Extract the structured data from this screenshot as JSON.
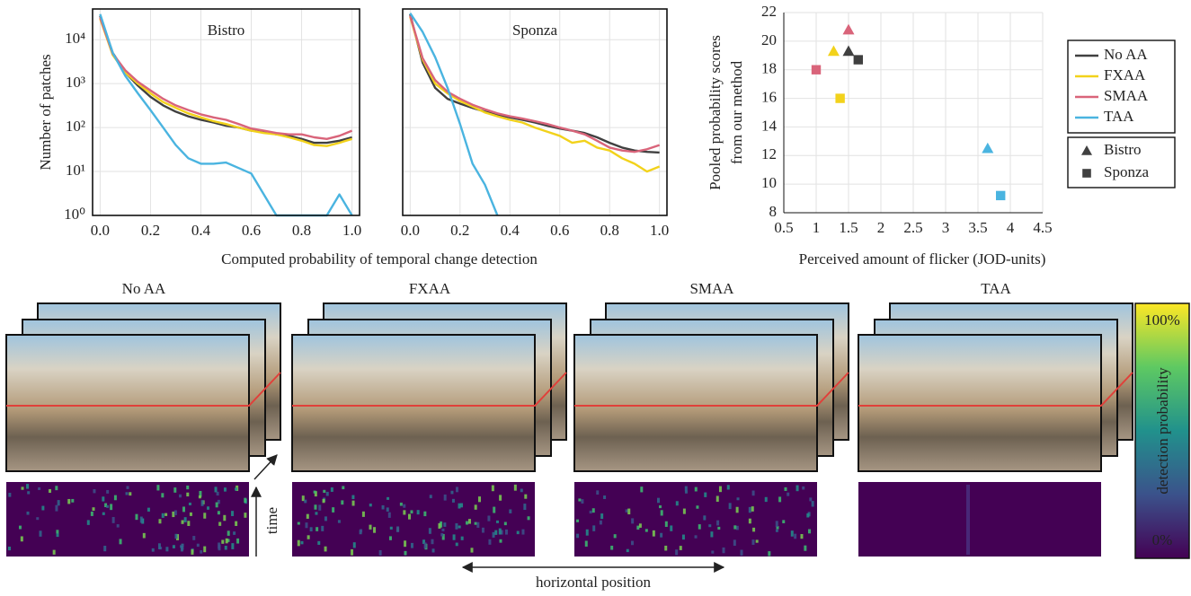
{
  "chart_data": [
    {
      "type": "line",
      "title": "Bistro",
      "ylabel": "Number of patches",
      "xlabel": "Computed probability of temporal change detection",
      "x": [
        0,
        0.05,
        0.1,
        0.15,
        0.2,
        0.25,
        0.3,
        0.35,
        0.4,
        0.45,
        0.5,
        0.55,
        0.6,
        0.65,
        0.7,
        0.75,
        0.8,
        0.85,
        0.9,
        0.95,
        1.0
      ],
      "log_y": true,
      "grid": true,
      "xlim": [
        -0.03,
        1.03
      ],
      "xticks": [
        {
          "value": 0,
          "label": "0.0"
        },
        0.2,
        0.4,
        0.6,
        0.8,
        {
          "value": 1,
          "label": "1.0"
        }
      ],
      "ylim": [
        1,
        50000
      ],
      "yticks": [
        {
          "value": 1,
          "label": "10⁰"
        },
        {
          "value": 10,
          "label": "10¹"
        },
        {
          "value": 100,
          "label": "10²"
        },
        {
          "value": 1000,
          "label": "10³"
        },
        {
          "value": 10000,
          "label": "10⁴"
        }
      ],
      "series": [
        {
          "color": "#404040",
          "values": [
            35000,
            5000,
            1800,
            900,
            500,
            320,
            230,
            180,
            150,
            130,
            110,
            100,
            85,
            80,
            70,
            65,
            55,
            45,
            45,
            50,
            60
          ]
        },
        {
          "color": "#f2d21b",
          "values": [
            30000,
            4500,
            1800,
            1000,
            600,
            380,
            280,
            210,
            170,
            140,
            120,
            100,
            85,
            75,
            70,
            60,
            50,
            40,
            38,
            45,
            55
          ]
        },
        {
          "color": "#d9647a",
          "values": [
            32000,
            4800,
            2000,
            1100,
            700,
            450,
            320,
            250,
            200,
            170,
            150,
            120,
            95,
            85,
            75,
            70,
            70,
            60,
            55,
            65,
            85
          ]
        },
        {
          "color": "#4ab4e0",
          "values": [
            38000,
            5000,
            1500,
            600,
            250,
            100,
            40,
            20,
            15,
            15,
            16,
            12,
            9,
            3,
            1,
            1,
            1,
            1,
            1,
            3,
            1
          ]
        }
      ]
    },
    {
      "type": "line",
      "title": "Sponza",
      "x": [
        0,
        0.05,
        0.1,
        0.15,
        0.2,
        0.25,
        0.3,
        0.35,
        0.4,
        0.45,
        0.5,
        0.55,
        0.6,
        0.65,
        0.7,
        0.75,
        0.8,
        0.85,
        0.9,
        0.95,
        1.0
      ],
      "log_y": true,
      "grid": true,
      "xlim": [
        -0.03,
        1.03
      ],
      "xticks": [
        {
          "value": 0,
          "label": "0.0"
        },
        0.2,
        0.4,
        0.6,
        0.8,
        {
          "value": 1,
          "label": "1.0"
        }
      ],
      "ylim": [
        1,
        50000
      ],
      "yticks": [
        1,
        10,
        100,
        1000,
        10000
      ],
      "series": [
        {
          "color": "#404040",
          "values": [
            38000,
            3000,
            800,
            450,
            350,
            280,
            230,
            200,
            170,
            150,
            130,
            110,
            95,
            85,
            75,
            60,
            45,
            35,
            30,
            28,
            27
          ]
        },
        {
          "color": "#f2d21b",
          "values": [
            33000,
            3500,
            1000,
            600,
            400,
            300,
            220,
            180,
            150,
            130,
            100,
            80,
            65,
            45,
            50,
            35,
            30,
            20,
            15,
            10,
            13
          ]
        },
        {
          "color": "#d9647a",
          "values": [
            35000,
            3800,
            1200,
            650,
            450,
            330,
            260,
            210,
            180,
            160,
            140,
            120,
            100,
            85,
            70,
            50,
            35,
            30,
            28,
            32,
            40
          ]
        },
        {
          "color": "#4ab4e0",
          "values": [
            40000,
            15000,
            4000,
            800,
            120,
            15,
            5,
            1,
            null,
            null,
            null,
            null,
            null,
            null,
            null,
            null,
            null,
            null,
            null,
            null,
            null
          ]
        }
      ]
    },
    {
      "type": "scatter",
      "xlabel": "Perceived amount of flicker (JOD-units)",
      "ylabel": [
        "Pooled probability scores",
        "from our method"
      ],
      "grid": true,
      "xlim": [
        0.5,
        4.5
      ],
      "xticks": [
        0.5,
        1,
        1.5,
        2,
        2.5,
        3,
        3.5,
        4,
        4.5
      ],
      "ylim": [
        8,
        22
      ],
      "yticks": [
        8,
        10,
        12,
        14,
        16,
        18,
        20,
        22
      ],
      "markers": [
        "Bistro",
        "Sponza"
      ],
      "marker_shapes": [
        "triangle",
        "square"
      ],
      "series": [
        {
          "name": "No AA",
          "color": "#404040",
          "x": [
            1.5,
            1.65
          ],
          "y": [
            19.3,
            18.7
          ]
        },
        {
          "name": "FXAA",
          "color": "#f2d21b",
          "x": [
            1.27,
            1.37
          ],
          "y": [
            19.3,
            16
          ]
        },
        {
          "name": "SMAA",
          "color": "#d9647a",
          "x": [
            1.5,
            1.0
          ],
          "y": [
            20.8,
            18
          ]
        },
        {
          "name": "TAA",
          "color": "#4ab4e0",
          "x": [
            3.65,
            3.85
          ],
          "y": [
            12.5,
            9.2
          ]
        }
      ]
    }
  ],
  "figure": {
    "panels": [
      "No AA",
      "FXAA",
      "SMAA",
      "TAA"
    ],
    "time_label": "time",
    "position_label": "horizontal position",
    "colorbar": {
      "label": "detection probability",
      "top": "100%",
      "bottom": "0%"
    }
  }
}
